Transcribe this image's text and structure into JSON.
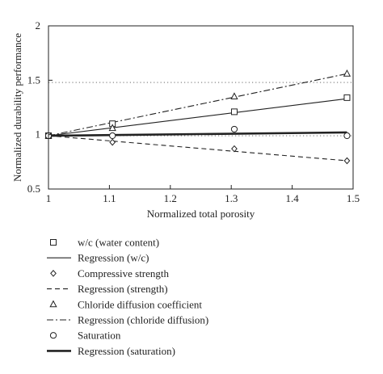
{
  "chart_data": {
    "type": "scatter",
    "xlabel": "Normalized total porosity",
    "ylabel": "Normalized durability performance",
    "xlim": [
      1,
      1.5
    ],
    "ylim": [
      0.5,
      2
    ],
    "xticks": [
      "1",
      "1.1",
      "1.2",
      "1.3",
      "1.4",
      "1.5"
    ],
    "yticks": [
      "0.5",
      "1",
      "1.5",
      "2"
    ],
    "reference_lines": [
      1.48,
      0.99
    ],
    "series": [
      {
        "name": "w/c (water content)",
        "marker": "square",
        "x": [
          1,
          1.105,
          1.305,
          1.49
        ],
        "y": [
          0.99,
          1.1,
          1.21,
          1.34
        ]
      },
      {
        "name": "Regression (w/c)",
        "line": "solid",
        "x": [
          1,
          1.49
        ],
        "y": [
          0.99,
          1.33
        ]
      },
      {
        "name": "Compressive strength",
        "marker": "diamond",
        "x": [
          1,
          1.105,
          1.305,
          1.49
        ],
        "y": [
          0.99,
          0.93,
          0.87,
          0.76
        ]
      },
      {
        "name": "Regression (strength)",
        "line": "dashed",
        "x": [
          1,
          1.49
        ],
        "y": [
          0.99,
          0.76
        ]
      },
      {
        "name": "Chloride diffusion coefficient",
        "marker": "triangle",
        "x": [
          1,
          1.105,
          1.305,
          1.49
        ],
        "y": [
          0.99,
          1.06,
          1.35,
          1.56
        ]
      },
      {
        "name": "Regression (chloride diffusion)",
        "line": "dashdot",
        "x": [
          1,
          1.49
        ],
        "y": [
          0.99,
          1.56
        ]
      },
      {
        "name": "Saturation",
        "marker": "circle",
        "x": [
          1,
          1.105,
          1.305,
          1.49
        ],
        "y": [
          0.99,
          0.99,
          1.05,
          0.99
        ]
      },
      {
        "name": "Regression (saturation)",
        "line": "thick",
        "x": [
          1,
          1.49
        ],
        "y": [
          0.99,
          1.02
        ]
      }
    ],
    "grid": false,
    "legend_position": "below"
  }
}
